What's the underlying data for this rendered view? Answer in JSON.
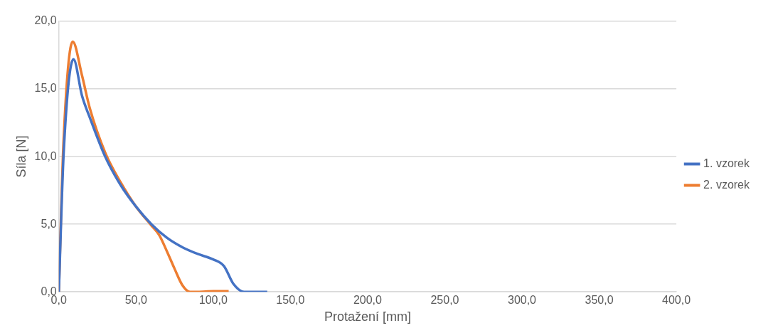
{
  "chart_data": {
    "type": "line",
    "xlabel": "Protažení [mm]",
    "ylabel": "Síla [N]",
    "xlim": [
      0,
      400
    ],
    "xticks": [
      {
        "value": 0,
        "label": "0,0"
      },
      {
        "value": 50,
        "label": "50,0"
      },
      {
        "value": 100,
        "label": "100,0"
      },
      {
        "value": 150,
        "label": "150,0"
      },
      {
        "value": 200,
        "label": "200,0"
      },
      {
        "value": 250,
        "label": "250,0"
      },
      {
        "value": 300,
        "label": "300,0"
      },
      {
        "value": 350,
        "label": "350,0"
      },
      {
        "value": 400,
        "label": "400,0"
      }
    ],
    "ylim": [
      0,
      20
    ],
    "yticks": [
      {
        "value": 0,
        "label": "0,0"
      },
      {
        "value": 5,
        "label": "5,0"
      },
      {
        "value": 10,
        "label": "10,0"
      },
      {
        "value": 15,
        "label": "15,0"
      },
      {
        "value": 20,
        "label": "20,0"
      }
    ],
    "grid": "y",
    "legend": "right",
    "marker": "none",
    "line_style": "solid",
    "series": [
      {
        "name": "1. vzorek",
        "color": "#4472c4",
        "x": [
          0,
          3.1,
          9.5,
          15,
          20,
          30,
          40,
          50,
          60,
          70,
          80,
          90,
          100,
          107,
          113,
          120,
          125,
          135
        ],
        "values": [
          0,
          10.2,
          17.2,
          14.5,
          12.9,
          10.0,
          7.9,
          6.3,
          5.0,
          4.0,
          3.3,
          2.8,
          2.4,
          1.9,
          0.6,
          0,
          0,
          0
        ]
      },
      {
        "name": "2. vzorek",
        "color": "#ed7d31",
        "x": [
          0,
          3,
          9,
          15,
          20,
          30,
          40,
          50,
          60,
          65,
          70,
          75,
          80,
          85,
          90,
          100,
          110
        ],
        "values": [
          0,
          11,
          18.5,
          16.0,
          13.6,
          10.3,
          8.1,
          6.3,
          4.9,
          4.2,
          3.0,
          1.7,
          0.5,
          0,
          0,
          0.05,
          0.05
        ]
      }
    ]
  }
}
